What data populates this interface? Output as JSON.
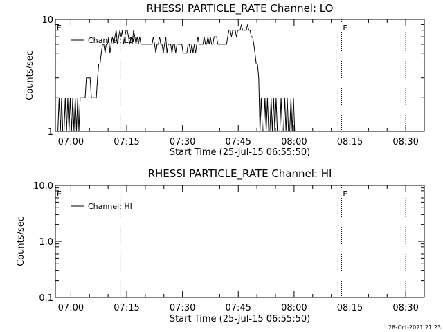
{
  "footer_date": "28-Oct-2021 21:23",
  "chart_data": [
    {
      "type": "line",
      "title": "RHESSI PARTICLE_RATE Channel: LO",
      "xlabel": "Start Time (25-Jul-15 06:55:50)",
      "ylabel": "Counts/sec",
      "yscale": "log",
      "ylim": [
        1,
        10
      ],
      "xlim": [
        "06:55:50",
        "08:35:00"
      ],
      "yticks": [
        {
          "value": 1,
          "label": "1"
        },
        {
          "value": 10,
          "label": "10"
        }
      ],
      "xticks": [
        "07:00",
        "07:15",
        "07:30",
        "07:45",
        "08:00",
        "08:15",
        "08:30"
      ],
      "legend": {
        "label": "Channel: LO",
        "location": "upper-left"
      },
      "vlines": [
        "07:13:15",
        "08:12:45",
        "08:30:00"
      ],
      "markers": [
        {
          "label": "E",
          "x": "06:55:50"
        },
        {
          "label": "E",
          "x": "08:12:45"
        }
      ],
      "series": [
        {
          "t_start": "06:56:30",
          "t_step_seconds": 20,
          "values": [
            1,
            2,
            1,
            2,
            1,
            1,
            2,
            1,
            2,
            1,
            2,
            1,
            2,
            1,
            2,
            1,
            2,
            1,
            2,
            2,
            2,
            2,
            2,
            3,
            3,
            3,
            3,
            2,
            2,
            2,
            2,
            2,
            3,
            4,
            4,
            5,
            6,
            6,
            5,
            6,
            6,
            7,
            5,
            6,
            7,
            6,
            7,
            8,
            6,
            7,
            8,
            7,
            8,
            6,
            7,
            8,
            8,
            7,
            6,
            7,
            6,
            8,
            7,
            6,
            7,
            6,
            7,
            6,
            6,
            6,
            6,
            6,
            6,
            6,
            6,
            6,
            6,
            7,
            6,
            5,
            6,
            6,
            7,
            6,
            6,
            5,
            6,
            7,
            5,
            6,
            6,
            6,
            5,
            6,
            6,
            5,
            6,
            6,
            6,
            6,
            6,
            5,
            5,
            5,
            5,
            6,
            6,
            5,
            6,
            5,
            6,
            5,
            6,
            7,
            6,
            6,
            6,
            6,
            7,
            6,
            6,
            7,
            6,
            7,
            6,
            6,
            7,
            7,
            7,
            6,
            6,
            6,
            6,
            6,
            6,
            6,
            6,
            7,
            8,
            8,
            7,
            8,
            8,
            8,
            7,
            8,
            8,
            8,
            9,
            8,
            8,
            8,
            8,
            9,
            8,
            8,
            7,
            7,
            6,
            5,
            4,
            4,
            3,
            1,
            2,
            1,
            1,
            2,
            1,
            2,
            1,
            1,
            2,
            1,
            2,
            1,
            2,
            1,
            1,
            1,
            2,
            1,
            1,
            2,
            1,
            2,
            1,
            1,
            2,
            1,
            2,
            1,
            1,
            1,
            1,
            1,
            1,
            1
          ]
        }
      ]
    },
    {
      "type": "line",
      "title": "RHESSI PARTICLE_RATE Channel: HI",
      "xlabel": "Start Time (25-Jul-15 06:55:50)",
      "ylabel": "Counts/sec",
      "yscale": "log",
      "ylim": [
        0.1,
        10
      ],
      "xlim": [
        "06:55:50",
        "08:35:00"
      ],
      "yticks": [
        {
          "value": 0.1,
          "label": "0.1"
        },
        {
          "value": 1,
          "label": "1.0"
        },
        {
          "value": 10,
          "label": "10.0"
        }
      ],
      "xticks": [
        "07:00",
        "07:15",
        "07:30",
        "07:45",
        "08:00",
        "08:15",
        "08:30"
      ],
      "legend": {
        "label": "Channel: HI",
        "location": "upper-left"
      },
      "vlines": [
        "07:13:15",
        "08:12:45",
        "08:30:00"
      ],
      "markers": [
        {
          "label": "E",
          "x": "06:55:50"
        },
        {
          "label": "E",
          "x": "08:12:45"
        }
      ],
      "series": []
    }
  ]
}
